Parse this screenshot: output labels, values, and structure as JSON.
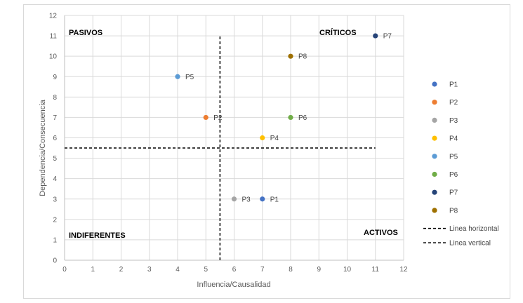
{
  "chart_data": {
    "type": "scatter",
    "title": "",
    "xlabel": "Influencia/Causalidad",
    "ylabel": "Dependencia/Consecuencia",
    "xlim": [
      0,
      12
    ],
    "ylim": [
      0,
      12
    ],
    "x_ticks": [
      "0",
      "1",
      "2",
      "3",
      "4",
      "5",
      "6",
      "7",
      "8",
      "9",
      "10",
      "11",
      "12"
    ],
    "y_ticks": [
      "0",
      "1",
      "2",
      "3",
      "4",
      "5",
      "6",
      "7",
      "8",
      "9",
      "10",
      "11",
      "12"
    ],
    "grid": true,
    "legend_position": "right",
    "quadrant_labels": {
      "top_left": "PASIVOS",
      "top_right": "CRÍTICOS",
      "bottom_left": "INDIFERENTES",
      "bottom_right": "ACTIVOS"
    },
    "series": [
      {
        "name": "P1",
        "x": 7,
        "y": 3,
        "color": "#4472c4"
      },
      {
        "name": "P2",
        "x": 5,
        "y": 7,
        "color": "#ed7d31"
      },
      {
        "name": "P3",
        "x": 6,
        "y": 3,
        "color": "#a5a5a5"
      },
      {
        "name": "P4",
        "x": 7,
        "y": 6,
        "color": "#ffc000"
      },
      {
        "name": "P5",
        "x": 4,
        "y": 9,
        "color": "#5b9bd5"
      },
      {
        "name": "P6",
        "x": 8,
        "y": 7,
        "color": "#70ad47"
      },
      {
        "name": "P7",
        "x": 11,
        "y": 11,
        "color": "#264478"
      },
      {
        "name": "P8",
        "x": 8,
        "y": 10,
        "color": "#9e7000"
      }
    ],
    "reference_lines": [
      {
        "name": "Linea horizontal",
        "orientation": "horizontal",
        "y": 5.5,
        "x_range": [
          0,
          11
        ],
        "color": "#000000",
        "style": "dashed"
      },
      {
        "name": "Linea vertical",
        "orientation": "vertical",
        "x": 5.5,
        "y_range": [
          0,
          11
        ],
        "color": "#000000",
        "style": "dashed"
      }
    ]
  }
}
